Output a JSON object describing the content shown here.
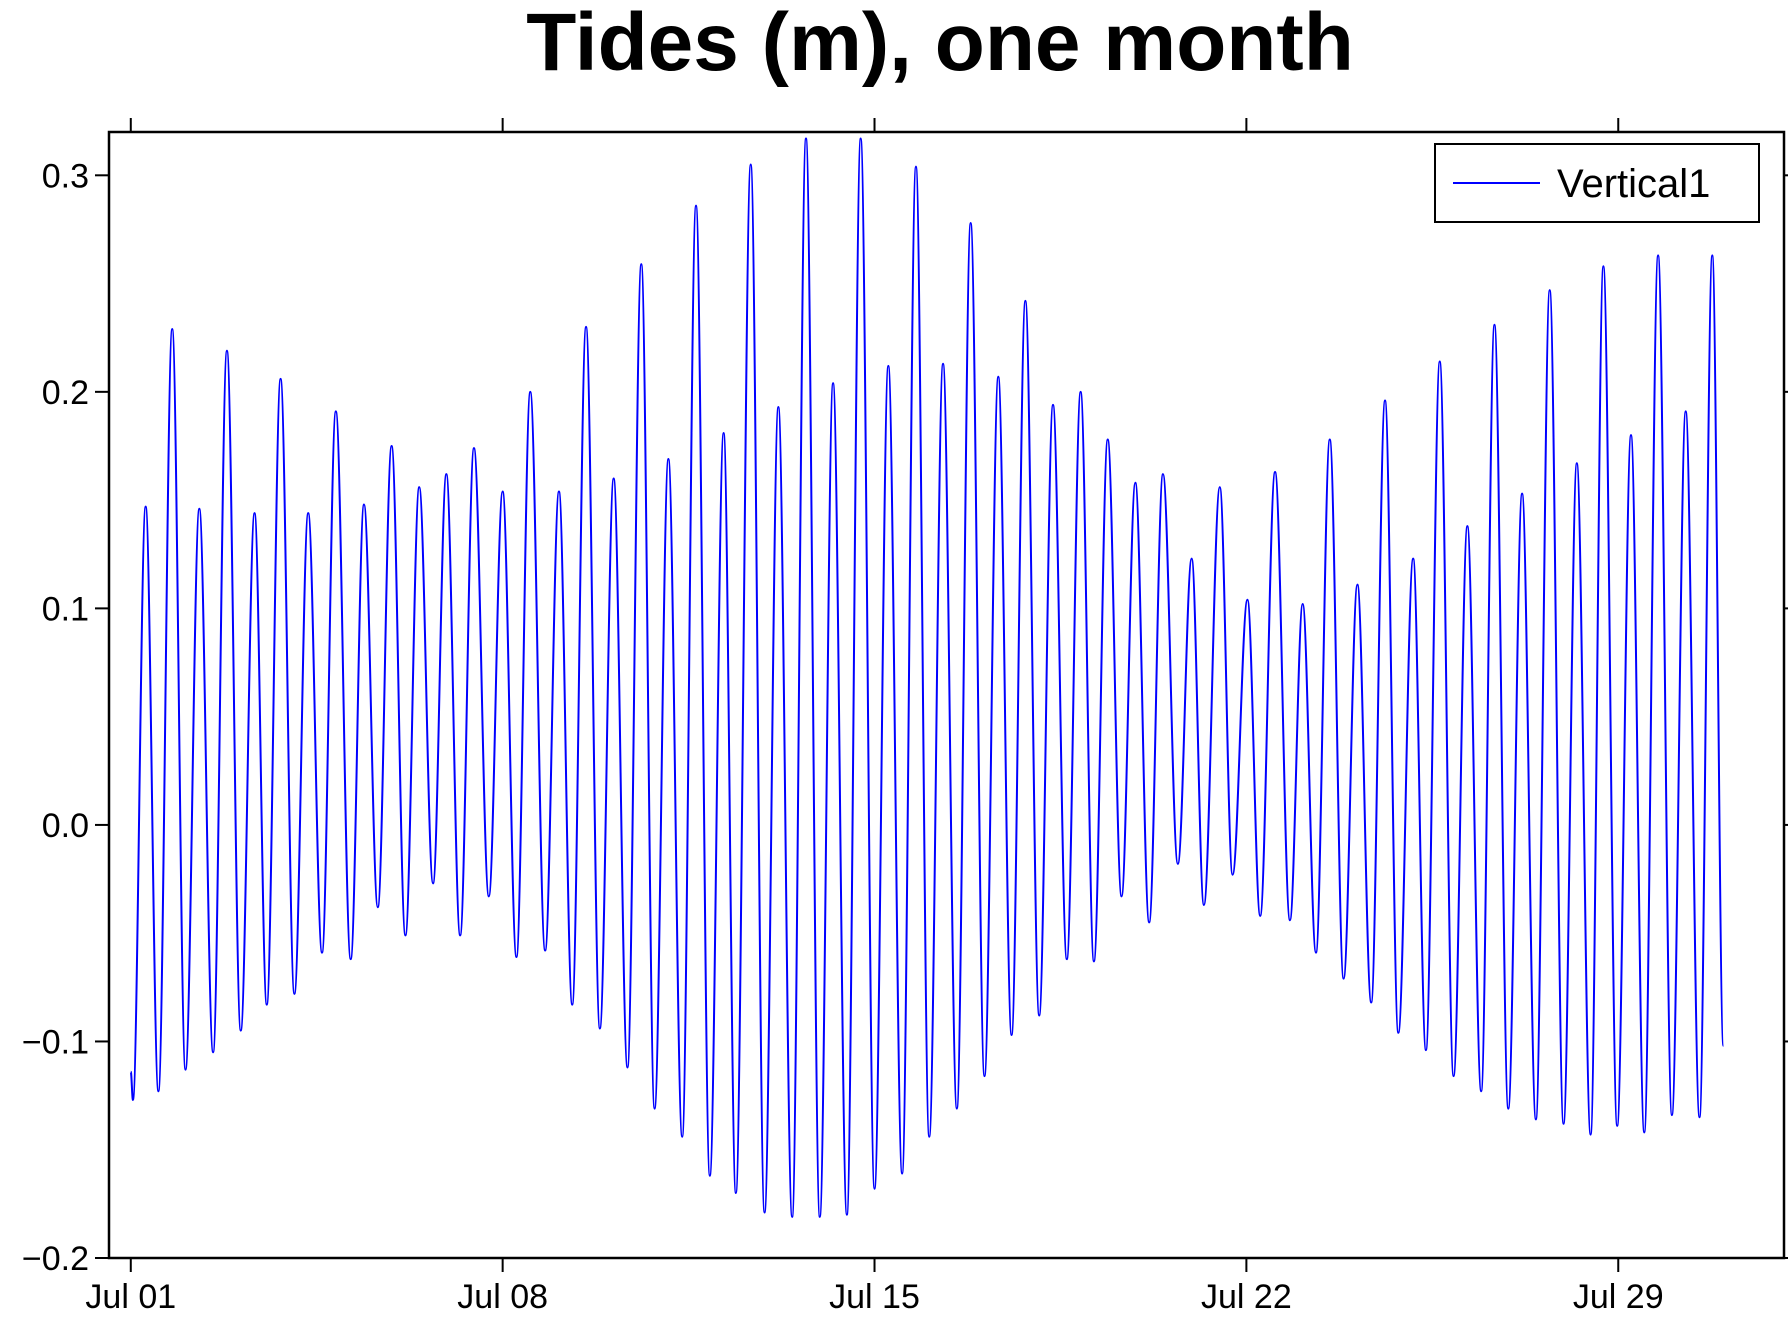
{
  "chart_data": {
    "type": "line",
    "title": "Tides (m), one month",
    "xlim": [
      0.59,
      32.12
    ],
    "ylim": [
      -0.2,
      0.32
    ],
    "xticks": [
      {
        "value": 1,
        "label": "Jul 01"
      },
      {
        "value": 8,
        "label": "Jul 08"
      },
      {
        "value": 15,
        "label": "Jul 15"
      },
      {
        "value": 22,
        "label": "Jul 22"
      },
      {
        "value": 29,
        "label": "Jul 29"
      }
    ],
    "yticks": [
      {
        "value": -0.2,
        "label": "−0.2"
      },
      {
        "value": -0.1,
        "label": "−0.1"
      },
      {
        "value": 0,
        "label": "0.0"
      },
      0.1,
      0.2,
      0.3
    ],
    "grid": false,
    "legend": "top-right",
    "x": [
      1.0,
      1.04,
      1.28,
      1.52,
      1.78,
      2.03,
      2.29,
      2.55,
      2.81,
      3.07,
      3.33,
      3.56,
      3.82,
      4.08,
      4.34,
      4.6,
      4.86,
      5.14,
      5.39,
      5.65,
      5.91,
      6.17,
      6.43,
      6.69,
      6.94,
      7.2,
      7.46,
      7.74,
      8.0,
      8.26,
      8.52,
      8.8,
      9.06,
      9.31,
      9.57,
      9.83,
      10.09,
      10.35,
      10.61,
      10.86,
      11.12,
      11.38,
      11.64,
      11.9,
      12.16,
      12.39,
      12.67,
      12.93,
      13.19,
      13.45,
      13.71,
      13.97,
      14.22,
      14.48,
      14.74,
      15.0,
      15.26,
      15.52,
      15.78,
      16.03,
      16.29,
      16.55,
      16.81,
      17.07,
      17.33,
      17.58,
      17.84,
      18.1,
      18.36,
      18.62,
      18.88,
      19.13,
      19.39,
      19.65,
      19.91,
      20.17,
      20.43,
      20.71,
      20.97,
      21.2,
      21.5,
      21.74,
      22.02,
      22.26,
      22.54,
      22.82,
      23.06,
      23.31,
      23.57,
      23.83,
      24.09,
      24.35,
      24.61,
      24.86,
      25.14,
      25.38,
      25.64,
      25.9,
      26.16,
      26.42,
      26.67,
      26.93,
      27.19,
      27.45,
      27.71,
      27.97,
      28.22,
      28.48,
      28.72,
      28.98,
      29.24,
      29.49,
      29.75,
      30.01,
      30.27,
      30.53,
      30.77,
      30.98
    ],
    "series": [
      {
        "name": "Vertical1",
        "color": "#0000ff",
        "values": [
          -0.114,
          -0.127,
          0.147,
          -0.123,
          0.229,
          -0.113,
          0.146,
          -0.105,
          0.219,
          -0.095,
          0.144,
          -0.083,
          0.206,
          -0.078,
          0.144,
          -0.059,
          0.191,
          -0.062,
          0.148,
          -0.038,
          0.175,
          -0.051,
          0.156,
          -0.027,
          0.162,
          -0.051,
          0.174,
          -0.033,
          0.154,
          -0.061,
          0.2,
          -0.058,
          0.154,
          -0.083,
          0.23,
          -0.094,
          0.16,
          -0.112,
          0.259,
          -0.131,
          0.169,
          -0.144,
          0.286,
          -0.162,
          0.181,
          -0.17,
          0.305,
          -0.179,
          0.193,
          -0.181,
          0.317,
          -0.181,
          0.204,
          -0.18,
          0.317,
          -0.168,
          0.212,
          -0.161,
          0.304,
          -0.144,
          0.213,
          -0.131,
          0.278,
          -0.116,
          0.207,
          -0.097,
          0.242,
          -0.088,
          0.194,
          -0.062,
          0.2,
          -0.063,
          0.178,
          -0.033,
          0.158,
          -0.045,
          0.162,
          -0.018,
          0.123,
          -0.037,
          0.156,
          -0.023,
          0.104,
          -0.042,
          0.163,
          -0.044,
          0.102,
          -0.059,
          0.178,
          -0.071,
          0.111,
          -0.082,
          0.196,
          -0.096,
          0.123,
          -0.104,
          0.214,
          -0.116,
          0.138,
          -0.123,
          0.231,
          -0.131,
          0.153,
          -0.136,
          0.247,
          -0.138,
          0.167,
          -0.143,
          0.258,
          -0.139,
          0.18,
          -0.142,
          0.263,
          -0.134,
          0.191,
          -0.135,
          0.263,
          -0.102
        ]
      }
    ]
  }
}
